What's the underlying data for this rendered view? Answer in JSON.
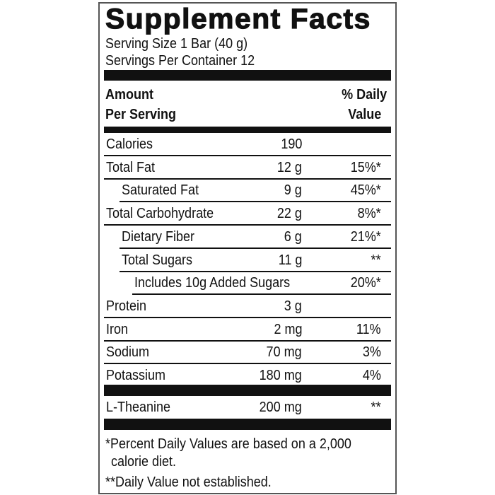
{
  "title": "Supplement Facts",
  "serving_size": "Serving Size 1 Bar (40 g)",
  "servings_per_container": "Servings Per Container 12",
  "header": {
    "amount_line1": "Amount",
    "amount_line2": "Per Serving",
    "dv_line1": "% Daily",
    "dv_line2": "Value"
  },
  "rows": [
    {
      "name": "Calories",
      "amount": "190",
      "dv": ""
    },
    {
      "name": "Total Fat",
      "amount": "12 g",
      "dv": "15%*"
    },
    {
      "name": "Saturated Fat",
      "amount": "9 g",
      "dv": "45%*"
    },
    {
      "name": "Total Carbohydrate",
      "amount": "22 g",
      "dv": "8%*"
    },
    {
      "name": "Dietary Fiber",
      "amount": "6 g",
      "dv": "21%*"
    },
    {
      "name": "Total Sugars",
      "amount": "11 g",
      "dv": "**"
    },
    {
      "name": "Includes 10g Added Sugars",
      "amount": "",
      "dv": "20%*"
    },
    {
      "name": "Protein",
      "amount": "3 g",
      "dv": ""
    },
    {
      "name": "Iron",
      "amount": "2 mg",
      "dv": "11%"
    },
    {
      "name": "Sodium",
      "amount": "70 mg",
      "dv": "3%"
    },
    {
      "name": "Potassium",
      "amount": "180 mg",
      "dv": "4%"
    }
  ],
  "other": [
    {
      "name": "L-Theanine",
      "amount": "200 mg",
      "dv": "**"
    }
  ],
  "footnotes": {
    "percent_line1": "*Percent Daily Values are based on a 2,000",
    "percent_line2": "calorie diet.",
    "not_established": "**Daily Value not established."
  }
}
